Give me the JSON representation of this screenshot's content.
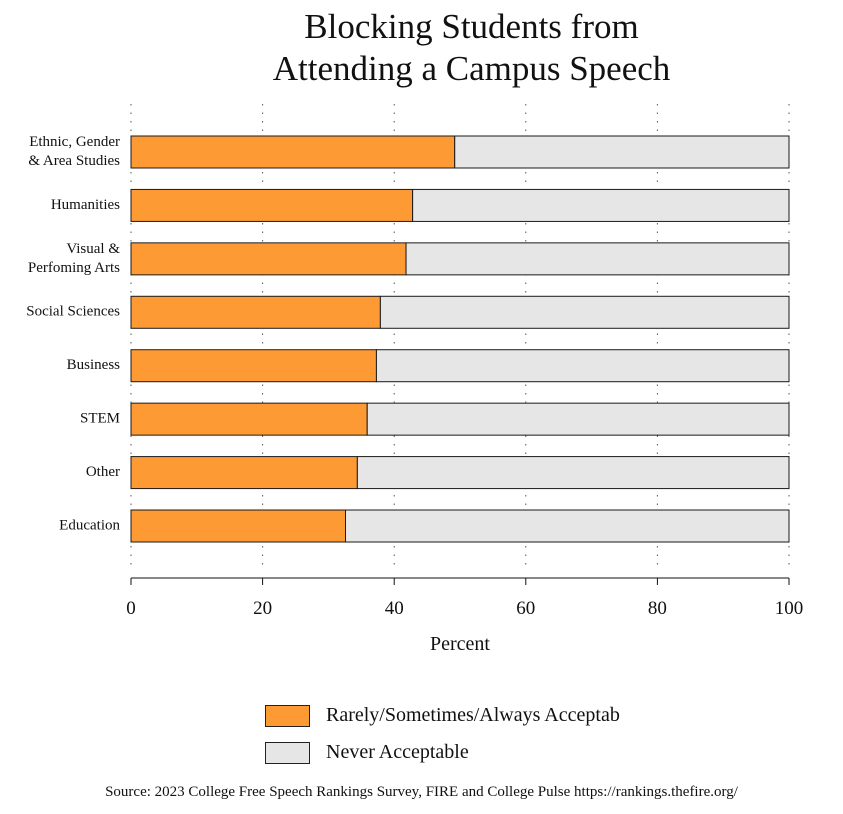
{
  "chart_data": {
    "type": "bar",
    "orientation": "horizontal",
    "stacked": true,
    "title": "Blocking Students from Attending a Campus Speech",
    "title_lines": [
      "Blocking Students from",
      "Attending a Campus Speech"
    ],
    "xlabel": "Percent",
    "xlim": [
      0,
      100
    ],
    "xticks": [
      0,
      20,
      40,
      60,
      80,
      100
    ],
    "grid": "vertical dotted",
    "legend_placement": "bottom",
    "categories": [
      [
        "Ethnic, Gender",
        "& Area Studies"
      ],
      [
        "Humanities"
      ],
      [
        "Visual &",
        "Perfoming Arts"
      ],
      [
        "Social Sciences"
      ],
      [
        "Business"
      ],
      [
        "STEM"
      ],
      [
        "Other"
      ],
      [
        "Education"
      ]
    ],
    "series": [
      {
        "name": "Rarely/Sometimes/Always Acceptab",
        "color": "#fe9a34",
        "values": [
          49.2,
          42.8,
          41.8,
          37.9,
          37.3,
          35.9,
          34.4,
          32.6
        ]
      },
      {
        "name": "Never Acceptable",
        "color": "#e6e6e6",
        "values": [
          50.8,
          57.2,
          58.2,
          62.1,
          62.7,
          64.1,
          65.6,
          67.4
        ]
      }
    ],
    "source": "Source: 2023 College Free Speech Rankings Survey, FIRE and College Pulse https://rankings.thefire.org/"
  }
}
